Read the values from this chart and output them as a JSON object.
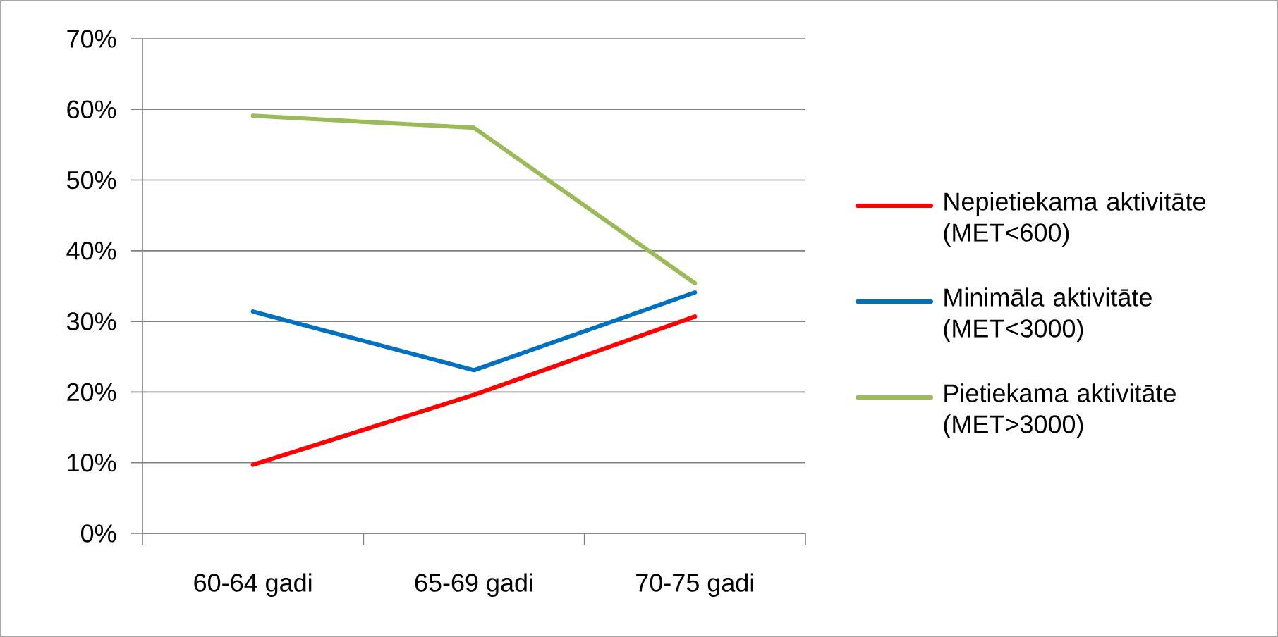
{
  "chart_data": {
    "type": "line",
    "categories": [
      "60-64 gadi",
      "65-69 gadi",
      "70-75 gadi"
    ],
    "series": [
      {
        "name": "Nepietiekama aktivitāte  (MET<600)",
        "color": "#ff0000",
        "values": [
          9.7,
          19.6,
          30.7
        ]
      },
      {
        "name": "Minimāla aktivitāte (MET<3000)",
        "color": "#0070c0",
        "values": [
          31.4,
          23.1,
          34.1
        ]
      },
      {
        "name": "Pietiekama aktivitāte (MET>3000)",
        "color": "#9bbb59",
        "values": [
          59.1,
          57.4,
          35.4
        ]
      }
    ],
    "ylim": [
      0,
      70
    ],
    "yticks": [
      {
        "value": 0,
        "label": "0%"
      },
      {
        "value": 10,
        "label": "10%"
      },
      {
        "value": 20,
        "label": "20%"
      },
      {
        "value": 30,
        "label": "30%"
      },
      {
        "value": 40,
        "label": "40%"
      },
      {
        "value": 50,
        "label": "50%"
      },
      {
        "value": 60,
        "label": "60%"
      },
      {
        "value": 70,
        "label": "70%"
      }
    ],
    "grid": "y",
    "legend": "right",
    "marker": "none",
    "line_style": "solid"
  }
}
